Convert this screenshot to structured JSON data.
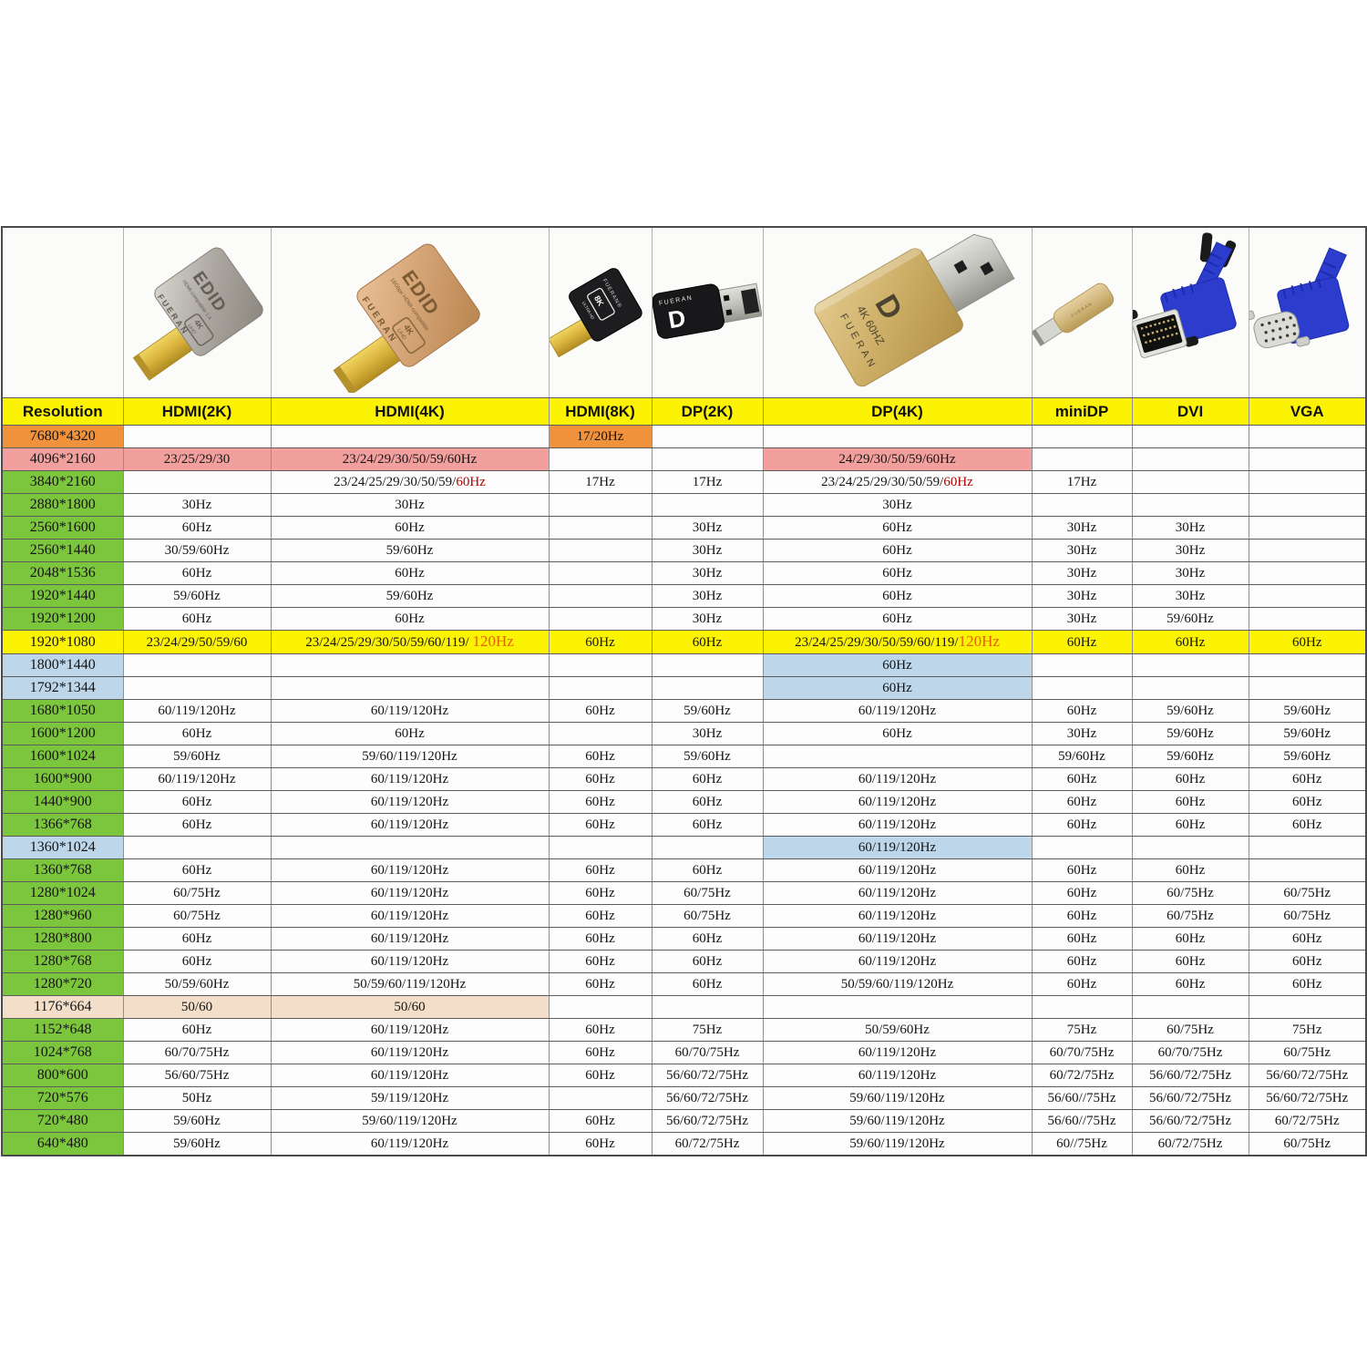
{
  "colors": {
    "ink": "#141414",
    "darkred": "#b00000",
    "redorange": "#e86000",
    "orange": "#f0923c",
    "pink": "#f2a09d",
    "green": "#7cc63e",
    "yellow": "#fcf303",
    "blue": "#bdd6ea",
    "peach": "#f3dfc9",
    "white": "#fdfdfd"
  },
  "products": [
    {
      "id": "hdmi-2k-adapter",
      "brand": "FUERAN",
      "label": "EDID",
      "badge1": "4K",
      "badge2": "UHD",
      "sub": "HDMI-compatible 1.4"
    },
    {
      "id": "hdmi-4k-adapter",
      "brand": "FUERAN",
      "label": "EDID",
      "badge1": "4K",
      "badge2": "UHD",
      "sub": "18Gbps HDMI-compatible"
    },
    {
      "id": "hdmi-8k-adapter",
      "brand": "FUERAN®",
      "badge1": "8K",
      "badge2": "ULTRA HD"
    },
    {
      "id": "dp-2k-adapter",
      "brand": "FUERAN",
      "logo": "D"
    },
    {
      "id": "dp-4k-adapter",
      "logo": "D",
      "spec": "4K 60HZ",
      "brand": "FUERAN"
    },
    {
      "id": "minidp-adapter",
      "brand": "FUERAN"
    },
    {
      "id": "dvi-adapter"
    },
    {
      "id": "vga-adapter"
    }
  ],
  "chart_data": {
    "type": "table",
    "columns": [
      "Resolution",
      "HDMI(2K)",
      "HDMI(4K)",
      "HDMI(8K)",
      "DP(2K)",
      "DP(4K)",
      "miniDP",
      "DVI",
      "VGA"
    ],
    "col_keys": [
      "hdmi2k",
      "hdmi4k",
      "hdmi8k",
      "dp2k",
      "dp4k",
      "minidp",
      "dvi",
      "vga"
    ],
    "rows": [
      {
        "label": "7680*4320",
        "lc": "orange",
        "cells": [
          "",
          "",
          {
            "t": "17/20Hz",
            "bg": "orange"
          },
          "",
          "",
          "",
          "",
          ""
        ]
      },
      {
        "label": "4096*2160",
        "lc": "pink",
        "cells": [
          {
            "t": "23/25/29/30",
            "bg": "pink"
          },
          {
            "t": "23/24/29/30/50/59/60Hz",
            "bg": "pink"
          },
          "",
          "",
          {
            "t": "24/29/30/50/59/60Hz",
            "bg": "pink"
          },
          "",
          "",
          ""
        ]
      },
      {
        "label": "3840*2160",
        "lc": "green",
        "cells": [
          "",
          {
            "t": [
              [
                "23/24/25/29/30/50/59/",
                "ink"
              ],
              [
                "60Hz",
                "darkred"
              ]
            ]
          },
          "17Hz",
          "17Hz",
          {
            "t": [
              [
                "23/24/25/29/30/50/59/",
                "ink"
              ],
              [
                "60Hz",
                "darkred"
              ]
            ]
          },
          "17Hz",
          "",
          ""
        ]
      },
      {
        "label": "2880*1800",
        "lc": "green",
        "cells": [
          "30Hz",
          "30Hz",
          "",
          "",
          "30Hz",
          "",
          "",
          ""
        ]
      },
      {
        "label": "2560*1600",
        "lc": "green",
        "cells": [
          "60Hz",
          "60Hz",
          "",
          "30Hz",
          "60Hz",
          "30Hz",
          "30Hz",
          ""
        ]
      },
      {
        "label": "2560*1440",
        "lc": "green",
        "cells": [
          "30/59/60Hz",
          "59/60Hz",
          "",
          "30Hz",
          "60Hz",
          "30Hz",
          "30Hz",
          ""
        ]
      },
      {
        "label": "2048*1536",
        "lc": "green",
        "cells": [
          "60Hz",
          "60Hz",
          "",
          "30Hz",
          "60Hz",
          "30Hz",
          "30Hz",
          ""
        ]
      },
      {
        "label": "1920*1440",
        "lc": "green",
        "cells": [
          "59/60Hz",
          "59/60Hz",
          "",
          "30Hz",
          "60Hz",
          "30Hz",
          "30Hz",
          ""
        ]
      },
      {
        "label": "1920*1200",
        "lc": "green",
        "cells": [
          "60Hz",
          "60Hz",
          "",
          "30Hz",
          "60Hz",
          "30Hz",
          "59/60Hz",
          ""
        ]
      },
      {
        "label": "1920*1080",
        "lc": "yellow",
        "bg": "yellow",
        "cells": [
          "23/24/29/50/59/60",
          {
            "t": [
              [
                "23/24/25/29/30/50/59/60/119/ ",
                "ink"
              ],
              [
                "120Hz",
                "redorange",
                "big"
              ]
            ]
          },
          "60Hz",
          "60Hz",
          {
            "t": [
              [
                "23/24/25/29/30/50/59/60/119/",
                "ink"
              ],
              [
                "120Hz",
                "redorange",
                "big"
              ]
            ]
          },
          "60Hz",
          "60Hz",
          "60Hz"
        ]
      },
      {
        "label": "1800*1440",
        "lc": "blue",
        "cells": [
          "",
          "",
          "",
          "",
          {
            "t": "60Hz",
            "bg": "blue"
          },
          "",
          "",
          ""
        ]
      },
      {
        "label": "1792*1344",
        "lc": "blue",
        "cells": [
          "",
          "",
          "",
          "",
          {
            "t": "60Hz",
            "bg": "blue"
          },
          "",
          "",
          ""
        ]
      },
      {
        "label": "1680*1050",
        "lc": "green",
        "cells": [
          "60/119/120Hz",
          "60/119/120Hz",
          "60Hz",
          "59/60Hz",
          "60/119/120Hz",
          "60Hz",
          "59/60Hz",
          "59/60Hz"
        ]
      },
      {
        "label": "1600*1200",
        "lc": "green",
        "cells": [
          "60Hz",
          "60Hz",
          "",
          "30Hz",
          "60Hz",
          "30Hz",
          "59/60Hz",
          "59/60Hz"
        ]
      },
      {
        "label": "1600*1024",
        "lc": "green",
        "cells": [
          "59/60Hz",
          "59/60/119/120Hz",
          "60Hz",
          "59/60Hz",
          "",
          "59/60Hz",
          "59/60Hz",
          "59/60Hz"
        ]
      },
      {
        "label": "1600*900",
        "lc": "green",
        "cells": [
          "60/119/120Hz",
          "60/119/120Hz",
          "60Hz",
          "60Hz",
          "60/119/120Hz",
          "60Hz",
          "60Hz",
          "60Hz"
        ]
      },
      {
        "label": "1440*900",
        "lc": "green",
        "cells": [
          "60Hz",
          "60/119/120Hz",
          "60Hz",
          "60Hz",
          "60/119/120Hz",
          "60Hz",
          "60Hz",
          "60Hz"
        ]
      },
      {
        "label": "1366*768",
        "lc": "green",
        "cells": [
          "60Hz",
          "60/119/120Hz",
          "60Hz",
          "60Hz",
          "60/119/120Hz",
          "60Hz",
          "60Hz",
          "60Hz"
        ]
      },
      {
        "label": "1360*1024",
        "lc": "blue",
        "cells": [
          "",
          "",
          "",
          "",
          {
            "t": "60/119/120Hz",
            "bg": "blue"
          },
          "",
          "",
          ""
        ]
      },
      {
        "label": "1360*768",
        "lc": "green",
        "cells": [
          "60Hz",
          "60/119/120Hz",
          "60Hz",
          "60Hz",
          "60/119/120Hz",
          "60Hz",
          "60Hz",
          ""
        ]
      },
      {
        "label": "1280*1024",
        "lc": "green",
        "cells": [
          "60/75Hz",
          "60/119/120Hz",
          "60Hz",
          "60/75Hz",
          "60/119/120Hz",
          "60Hz",
          "60/75Hz",
          "60/75Hz"
        ]
      },
      {
        "label": "1280*960",
        "lc": "green",
        "cells": [
          "60/75Hz",
          "60/119/120Hz",
          "60Hz",
          "60/75Hz",
          "60/119/120Hz",
          "60Hz",
          "60/75Hz",
          "60/75Hz"
        ]
      },
      {
        "label": "1280*800",
        "lc": "green",
        "cells": [
          "60Hz",
          "60/119/120Hz",
          "60Hz",
          "60Hz",
          "60/119/120Hz",
          "60Hz",
          "60Hz",
          "60Hz"
        ]
      },
      {
        "label": "1280*768",
        "lc": "green",
        "cells": [
          "60Hz",
          "60/119/120Hz",
          "60Hz",
          "60Hz",
          "60/119/120Hz",
          "60Hz",
          "60Hz",
          "60Hz"
        ]
      },
      {
        "label": "1280*720",
        "lc": "green",
        "cells": [
          "50/59/60Hz",
          "50/59/60/119/120Hz",
          "60Hz",
          "60Hz",
          "50/59/60/119/120Hz",
          "60Hz",
          "60Hz",
          "60Hz"
        ]
      },
      {
        "label": "1176*664",
        "lc": "peach",
        "cells": [
          {
            "t": "50/60",
            "bg": "peach"
          },
          {
            "t": "50/60",
            "bg": "peach"
          },
          "",
          "",
          "",
          "",
          "",
          ""
        ]
      },
      {
        "label": "1152*648",
        "lc": "green",
        "cells": [
          "60Hz",
          "60/119/120Hz",
          "60Hz",
          "75Hz",
          "50/59/60Hz",
          "75Hz",
          "60/75Hz",
          "75Hz"
        ]
      },
      {
        "label": "1024*768",
        "lc": "green",
        "cells": [
          "60/70/75Hz",
          "60/119/120Hz",
          "60Hz",
          "60/70/75Hz",
          "60/119/120Hz",
          "60/70/75Hz",
          "60/70/75Hz",
          "60/75Hz"
        ]
      },
      {
        "label": "800*600",
        "lc": "green",
        "cells": [
          "56/60/75Hz",
          "60/119/120Hz",
          "60Hz",
          "56/60/72/75Hz",
          "60/119/120Hz",
          "60/72/75Hz",
          "56/60/72/75Hz",
          "56/60/72/75Hz"
        ]
      },
      {
        "label": "720*576",
        "lc": "green",
        "cells": [
          "50Hz",
          "59/119/120Hz",
          "",
          "56/60/72/75Hz",
          "59/60/119/120Hz",
          "56/60//75Hz",
          "56/60/72/75Hz",
          "56/60/72/75Hz"
        ]
      },
      {
        "label": "720*480",
        "lc": "green",
        "cells": [
          "59/60Hz",
          "59/60/119/120Hz",
          "60Hz",
          "56/60/72/75Hz",
          "59/60/119/120Hz",
          "56/60//75Hz",
          "56/60/72/75Hz",
          "60/72/75Hz"
        ]
      },
      {
        "label": "640*480",
        "lc": "green",
        "cells": [
          "59/60Hz",
          "60/119/120Hz",
          "60Hz",
          "60/72/75Hz",
          "59/60/119/120Hz",
          "60//75Hz",
          "60/72/75Hz",
          "60/75Hz"
        ]
      }
    ]
  }
}
